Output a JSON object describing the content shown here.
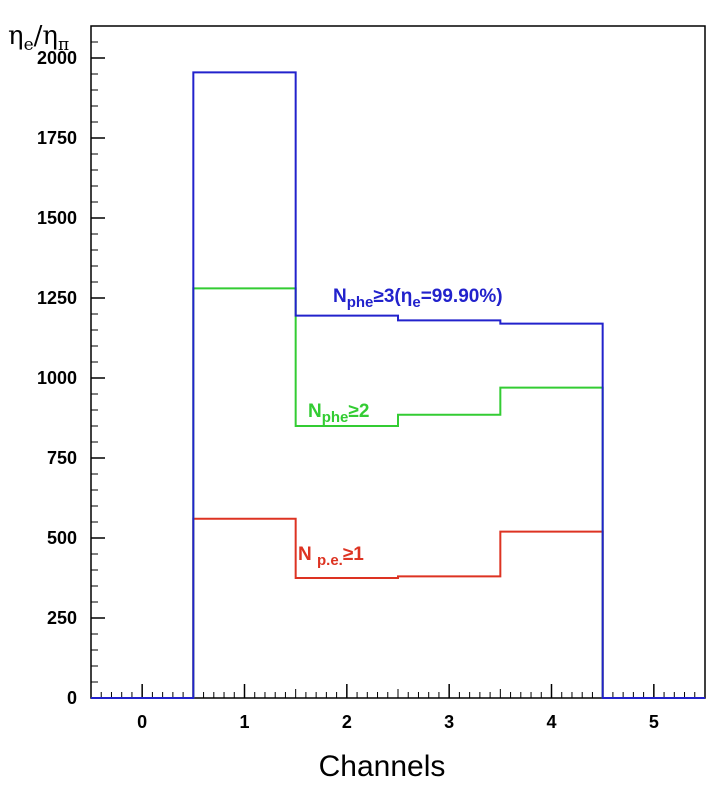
{
  "chart_data": {
    "type": "histogram-step",
    "xlabel": "Channels",
    "ylabel": "ηe/ηπ",
    "xlim": [
      -0.5,
      5.5
    ],
    "ylim": [
      0,
      2100
    ],
    "x_ticks": [
      "0",
      "1",
      "2",
      "3",
      "4",
      "5"
    ],
    "y_ticks": [
      "0",
      "250",
      "500",
      "750",
      "1000",
      "1250",
      "1500",
      "1750",
      "2000"
    ],
    "bin_edges": [
      -0.5,
      0.5,
      1.5,
      2.5,
      3.5,
      4.5,
      5.5
    ],
    "bin_centers": [
      0,
      1,
      2,
      3,
      4,
      5
    ],
    "series": [
      {
        "name": "Nphe≥3(ηe=99.90%)",
        "color": "#2222cc",
        "values": [
          0,
          1955,
          1195,
          1180,
          1170,
          0
        ]
      },
      {
        "name": "Nphe≥2",
        "color": "#33cc33",
        "values": [
          0,
          1280,
          850,
          885,
          970,
          0
        ]
      },
      {
        "name": "N p.e.≥1",
        "color": "#dd3322",
        "values": [
          0,
          560,
          375,
          380,
          520,
          0
        ]
      }
    ],
    "grid": false,
    "legend": "none"
  },
  "annotations": {
    "a3": {
      "main": "N",
      "sub": "phe",
      "rest": "≥3(η",
      "sub2": "e",
      "rest2": "=99.90%)",
      "color": "#2222cc"
    },
    "a2": {
      "main": "N",
      "sub": "phe",
      "rest": "≥2",
      "color": "#33cc33"
    },
    "a1": {
      "main": "N ",
      "sub": "p.e.",
      "rest": "≥1",
      "color": "#dd3322"
    }
  },
  "ylabel_parts": {
    "eta": "η",
    "sub_e": "e",
    "slash": "/",
    "eta2": "η",
    "sub_pi": "π"
  }
}
